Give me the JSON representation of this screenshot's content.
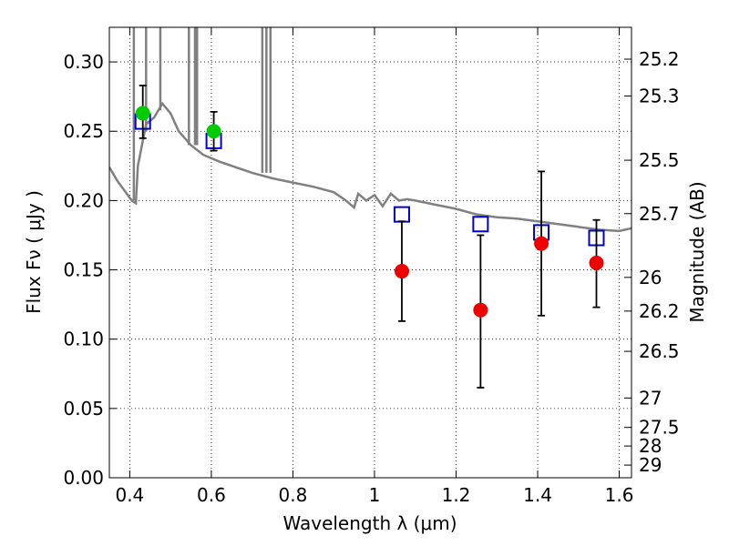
{
  "chart_data": {
    "type": "scatter",
    "title": "",
    "xlabel": "Wavelength  λ (μm)",
    "ylabel": "Flux  Fν  ( μJy )",
    "ylabel_right": "Magnitude (AB)",
    "xlim": [
      0.35,
      1.63
    ],
    "ylim": [
      0.0,
      0.325
    ],
    "grid": true,
    "x_ticks": [
      {
        "value": 0.4,
        "label": "0.4"
      },
      {
        "value": 0.6,
        "label": "0.6"
      },
      {
        "value": 0.8,
        "label": "0.8"
      },
      {
        "value": 1.0,
        "label": "1"
      },
      {
        "value": 1.2,
        "label": "1.2"
      },
      {
        "value": 1.4,
        "label": "1.4"
      },
      {
        "value": 1.6,
        "label": "1.6"
      }
    ],
    "y_ticks": [
      {
        "value": 0.0,
        "label": "0.00"
      },
      {
        "value": 0.05,
        "label": "0.05"
      },
      {
        "value": 0.1,
        "label": "0.10"
      },
      {
        "value": 0.15,
        "label": "0.15"
      },
      {
        "value": 0.2,
        "label": "0.20"
      },
      {
        "value": 0.25,
        "label": "0.25"
      },
      {
        "value": 0.3,
        "label": "0.30"
      }
    ],
    "right_ticks": [
      {
        "mag": 25.2,
        "label": "25.2"
      },
      {
        "mag": 25.3,
        "label": "25.3"
      },
      {
        "mag": 25.5,
        "label": "25.5"
      },
      {
        "mag": 25.7,
        "label": "25.7"
      },
      {
        "mag": 26.0,
        "label": "26"
      },
      {
        "mag": 26.2,
        "label": "26.2"
      },
      {
        "mag": 26.5,
        "label": "26.5"
      },
      {
        "mag": 27.0,
        "label": "27"
      },
      {
        "mag": 27.5,
        "label": "27.5"
      },
      {
        "mag": 28.0,
        "label": "28"
      },
      {
        "mag": 29.0,
        "label": "29"
      }
    ],
    "series": [
      {
        "kind": "model-spectrum",
        "color": "#808080",
        "points": [
          [
            0.35,
            0.224
          ],
          [
            0.37,
            0.214
          ],
          [
            0.39,
            0.206
          ],
          [
            0.405,
            0.2
          ],
          [
            0.415,
            0.198
          ],
          [
            0.42,
            0.225
          ],
          [
            0.43,
            0.24
          ],
          [
            0.44,
            0.255
          ],
          [
            0.46,
            0.26
          ],
          [
            0.48,
            0.27
          ],
          [
            0.5,
            0.263
          ],
          [
            0.52,
            0.25
          ],
          [
            0.55,
            0.24
          ],
          [
            0.58,
            0.233
          ],
          [
            0.62,
            0.228
          ],
          [
            0.66,
            0.224
          ],
          [
            0.7,
            0.22
          ],
          [
            0.75,
            0.216
          ],
          [
            0.8,
            0.213
          ],
          [
            0.85,
            0.21
          ],
          [
            0.9,
            0.206
          ],
          [
            0.93,
            0.2
          ],
          [
            0.95,
            0.195
          ],
          [
            0.96,
            0.205
          ],
          [
            0.98,
            0.2
          ],
          [
            1.0,
            0.204
          ],
          [
            1.02,
            0.196
          ],
          [
            1.04,
            0.205
          ],
          [
            1.06,
            0.2
          ],
          [
            1.08,
            0.201
          ],
          [
            1.1,
            0.2
          ],
          [
            1.15,
            0.197
          ],
          [
            1.2,
            0.194
          ],
          [
            1.25,
            0.19
          ],
          [
            1.3,
            0.188
          ],
          [
            1.35,
            0.187
          ],
          [
            1.4,
            0.185
          ],
          [
            1.45,
            0.183
          ],
          [
            1.5,
            0.181
          ],
          [
            1.55,
            0.179
          ],
          [
            1.6,
            0.178
          ],
          [
            1.63,
            0.18
          ]
        ],
        "spikes": [
          {
            "x": 0.41,
            "from": 0.2,
            "to": 0.325
          },
          {
            "x": 0.44,
            "from": 0.25,
            "to": 0.325
          },
          {
            "x": 0.475,
            "from": 0.265,
            "to": 0.325
          },
          {
            "x": 0.545,
            "from": 0.24,
            "to": 0.325
          },
          {
            "x": 0.56,
            "from": 0.24,
            "to": 0.325
          },
          {
            "x": 0.565,
            "from": 0.24,
            "to": 0.325
          },
          {
            "x": 0.725,
            "from": 0.22,
            "to": 0.325
          },
          {
            "x": 0.735,
            "from": 0.22,
            "to": 0.325
          },
          {
            "x": 0.745,
            "from": 0.22,
            "to": 0.325
          }
        ]
      },
      {
        "kind": "model-points",
        "marker": "square",
        "color": "#0000cc",
        "x": [
          0.432,
          0.606,
          1.067,
          1.26,
          1.409,
          1.544
        ],
        "y": [
          0.257,
          0.243,
          0.19,
          0.183,
          0.177,
          0.173
        ]
      },
      {
        "kind": "observed-optical",
        "marker": "circle",
        "color": "#00cc00",
        "x": [
          0.432,
          0.606
        ],
        "y": [
          0.263,
          0.25
        ],
        "err_low": [
          0.245,
          0.236
        ],
        "err_high": [
          0.283,
          0.264
        ]
      },
      {
        "kind": "observed-nir",
        "marker": "circle",
        "color": "#ee0000",
        "x": [
          1.067,
          1.26,
          1.409,
          1.544
        ],
        "y": [
          0.149,
          0.121,
          0.169,
          0.155
        ],
        "err_low": [
          0.113,
          0.065,
          0.117,
          0.123
        ],
        "err_high": [
          0.185,
          0.175,
          0.221,
          0.186
        ]
      }
    ]
  }
}
